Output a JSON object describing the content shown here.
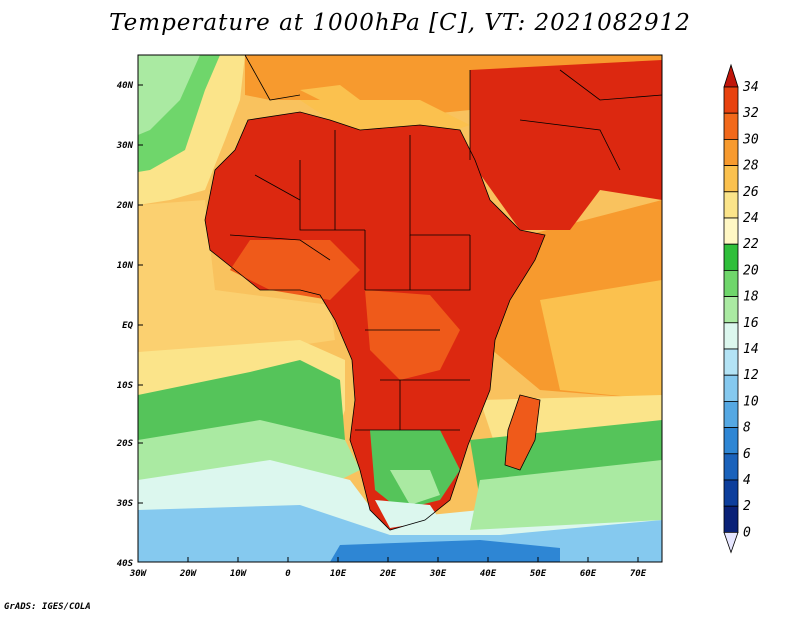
{
  "title": "Temperature at 1000hPa [C], VT: 2021082912",
  "footer": "GrADS: IGES/COLA",
  "lat_ticks": [
    "40N",
    "30N",
    "20N",
    "10N",
    "EQ",
    "10S",
    "20S",
    "30S",
    "40S"
  ],
  "lon_ticks": [
    "30W",
    "20W",
    "10W",
    "0",
    "10E",
    "20E",
    "30E",
    "40E",
    "50E",
    "60E",
    "70E"
  ],
  "colorbar": {
    "levels": [
      "34",
      "32",
      "30",
      "28",
      "26",
      "24",
      "22",
      "20",
      "18",
      "16",
      "14",
      "12",
      "10",
      "8",
      "6",
      "4",
      "2",
      "0"
    ],
    "colors": [
      "#d91e0a",
      "#e8420f",
      "#f2691b",
      "#f79a2e",
      "#fbc14e",
      "#fbe48a",
      "#fff7c4",
      "#2fbf3a",
      "#6fd66b",
      "#aaeaa2",
      "#dcf7ee",
      "#b3e3f5",
      "#85c9ef",
      "#55a8e3",
      "#2e86d4",
      "#1a62bb",
      "#0d3e9c",
      "#0a2177"
    ],
    "top_arrow_color": "#c0150a",
    "bottom_arrow_color": "#e6e6ff"
  },
  "colors": {
    "ocean_tropical": "#fbd070",
    "ocean_green": "#55c45a",
    "ocean_cool": "#bfe9f3",
    "land_hot": "#dc2810",
    "land_warm": "#ef5a1a",
    "border": "#000000"
  }
}
